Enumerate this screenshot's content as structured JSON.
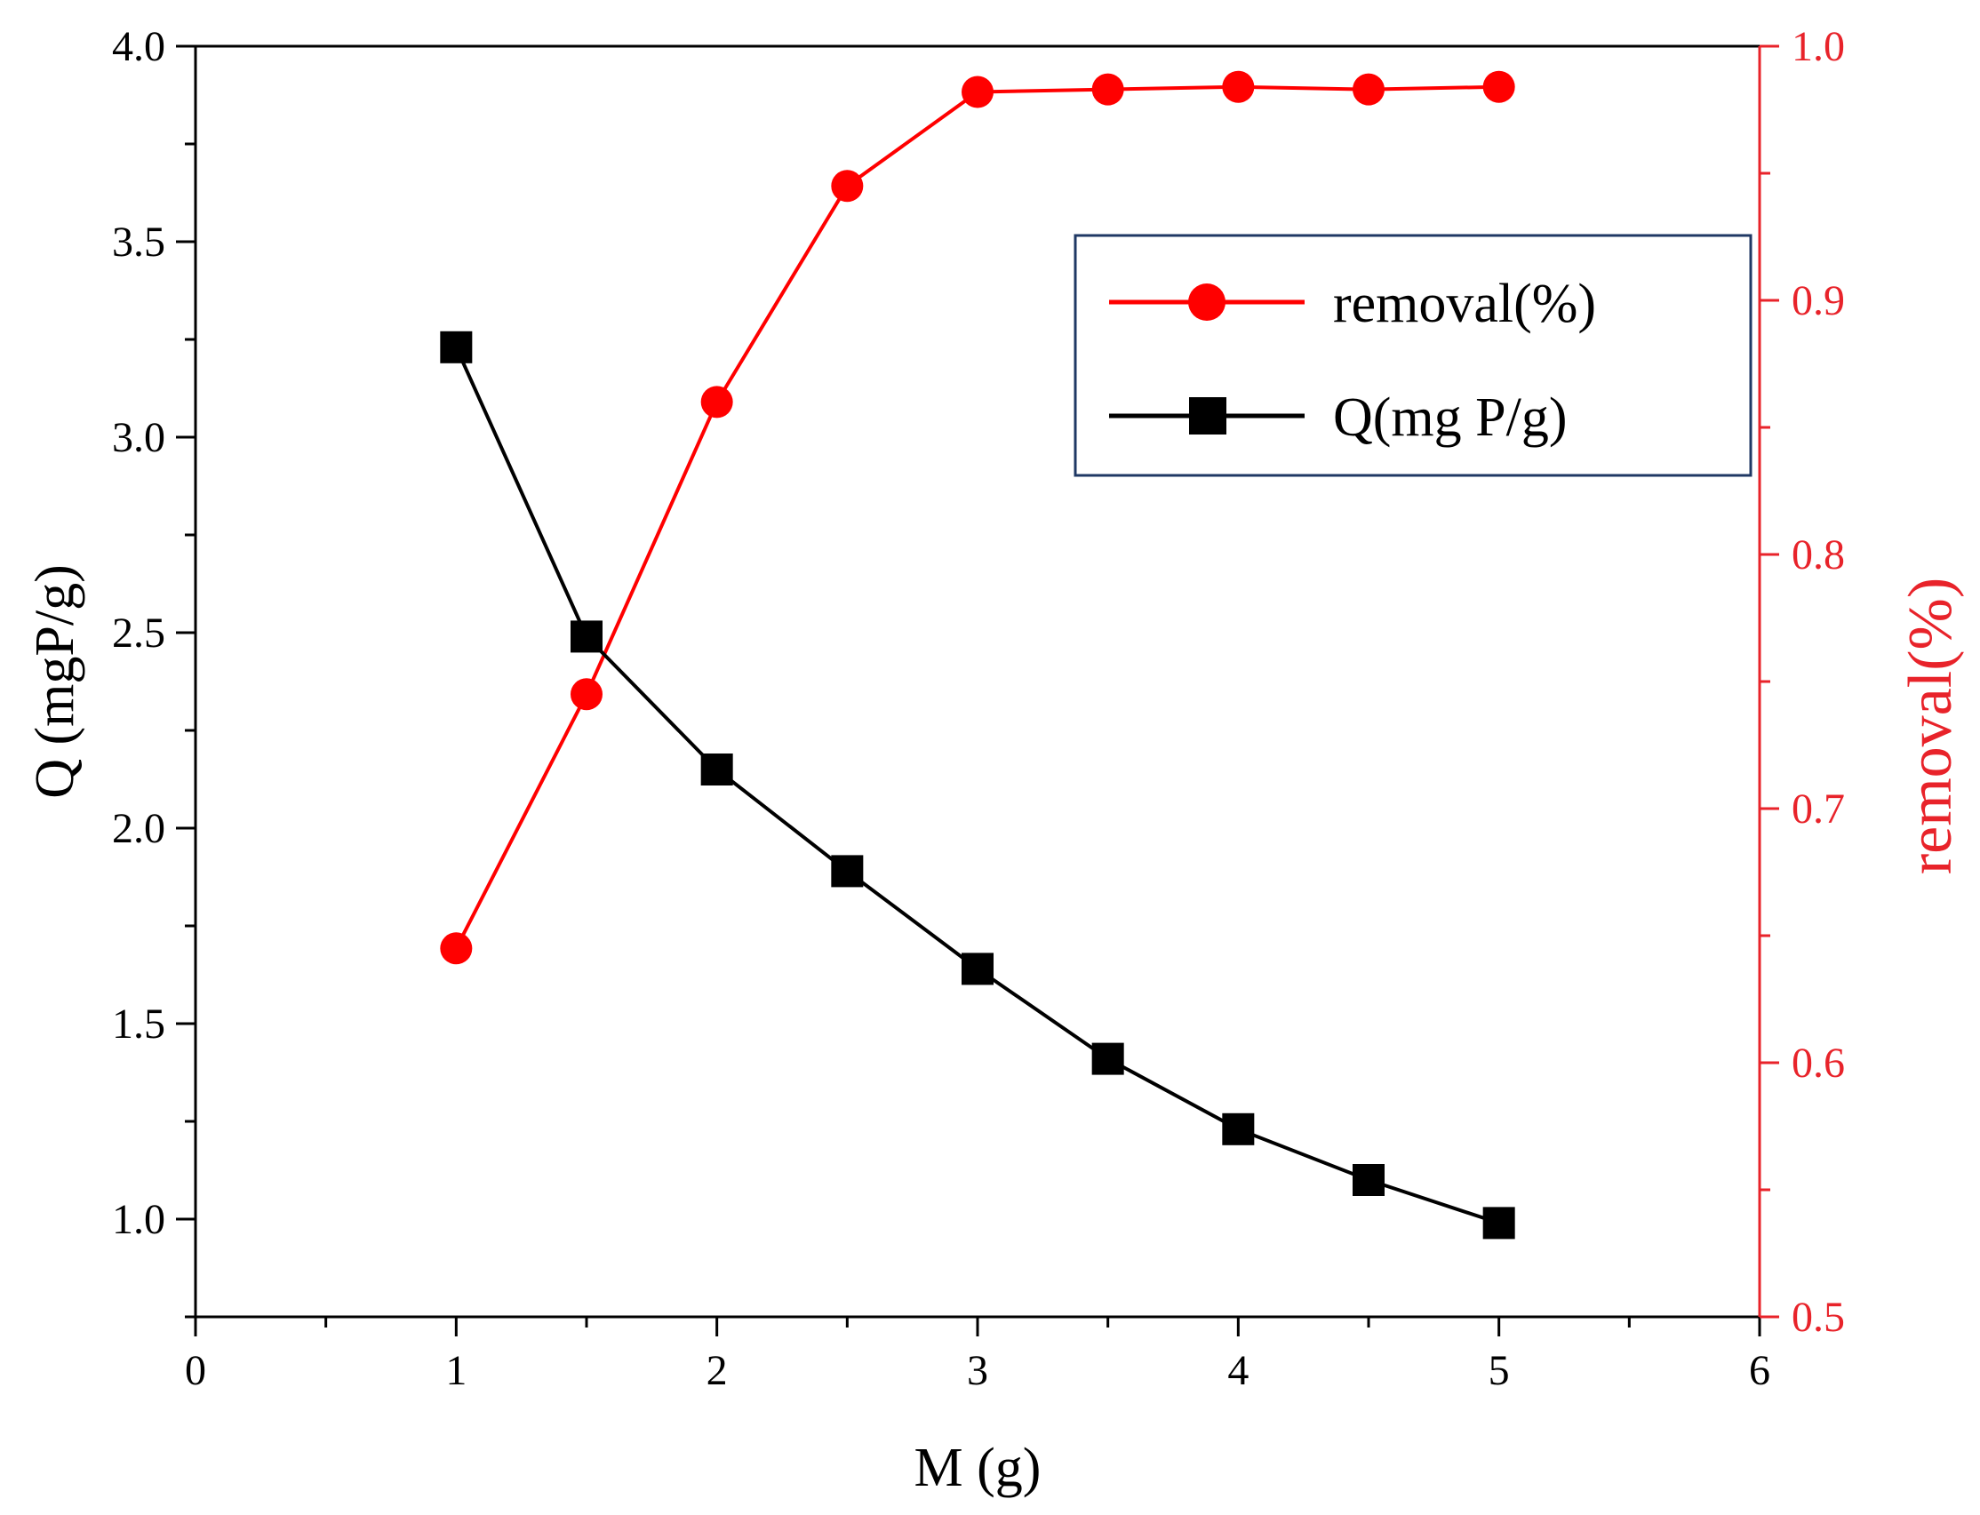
{
  "chart_data": {
    "type": "line",
    "title": "",
    "xlabel": "M (g)",
    "ylabel_left": "Q (mgP/g)",
    "ylabel_right": "removal(%)",
    "xlim": [
      0,
      6
    ],
    "ylim_left": [
      0.75,
      4.0
    ],
    "ylim_right": [
      0.5,
      1.0
    ],
    "x_ticks": [
      0,
      1,
      2,
      3,
      4,
      5,
      6
    ],
    "y_left_ticks": [
      1.0,
      1.5,
      2.0,
      2.5,
      3.0,
      3.5,
      4.0
    ],
    "y_right_ticks": [
      0.5,
      0.6,
      0.7,
      0.8,
      0.9,
      1.0
    ],
    "grid": false,
    "legend_position": "top-right",
    "x": [
      1,
      1.5,
      2,
      2.5,
      3,
      3.5,
      4,
      4.5,
      5
    ],
    "series": [
      {
        "name": "removal(%)",
        "axis": "right",
        "color": "#ff0000",
        "marker": "circle",
        "values": [
          0.645,
          0.745,
          0.86,
          0.945,
          0.982,
          0.983,
          0.984,
          0.983,
          0.984
        ]
      },
      {
        "name": "Q(mg P/g)",
        "axis": "left",
        "color": "#000000",
        "marker": "square",
        "values": [
          3.23,
          2.49,
          2.15,
          1.89,
          1.64,
          1.41,
          1.23,
          1.1,
          0.99
        ]
      }
    ],
    "colors": {
      "left_axis": "#000000",
      "right_axis": "#e8232a",
      "legend_border": "#1f3864"
    }
  }
}
